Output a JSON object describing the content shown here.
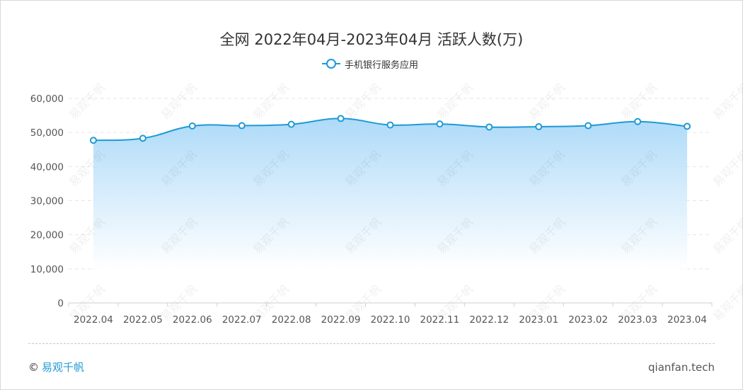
{
  "chart_data": {
    "type": "area",
    "title": "全网 2022年04月-2023年04月 活跃人数(万)",
    "categories": [
      "2022.04",
      "2022.05",
      "2022.06",
      "2022.07",
      "2022.08",
      "2022.09",
      "2022.10",
      "2022.11",
      "2022.12",
      "2023.01",
      "2023.02",
      "2023.03",
      "2023.04"
    ],
    "series": [
      {
        "name": "手机银行服务应用",
        "values": [
          47700,
          48300,
          51900,
          52000,
          52400,
          54100,
          52200,
          52500,
          51600,
          51700,
          52000,
          53200,
          51800
        ]
      }
    ],
    "yticks": [
      "0",
      "10,000",
      "20,000",
      "30,000",
      "40,000",
      "50,000",
      "60,000"
    ],
    "ylim": [
      0,
      60000
    ],
    "grid": true,
    "legend_position": "top-center"
  },
  "colors": {
    "line": "#1e9ad6",
    "area_top": "#a9d8f8",
    "brand": "#1e9ad6"
  },
  "footer": {
    "copyright_symbol": "©",
    "brand": "易观千帆",
    "site": "qianfan.tech"
  }
}
